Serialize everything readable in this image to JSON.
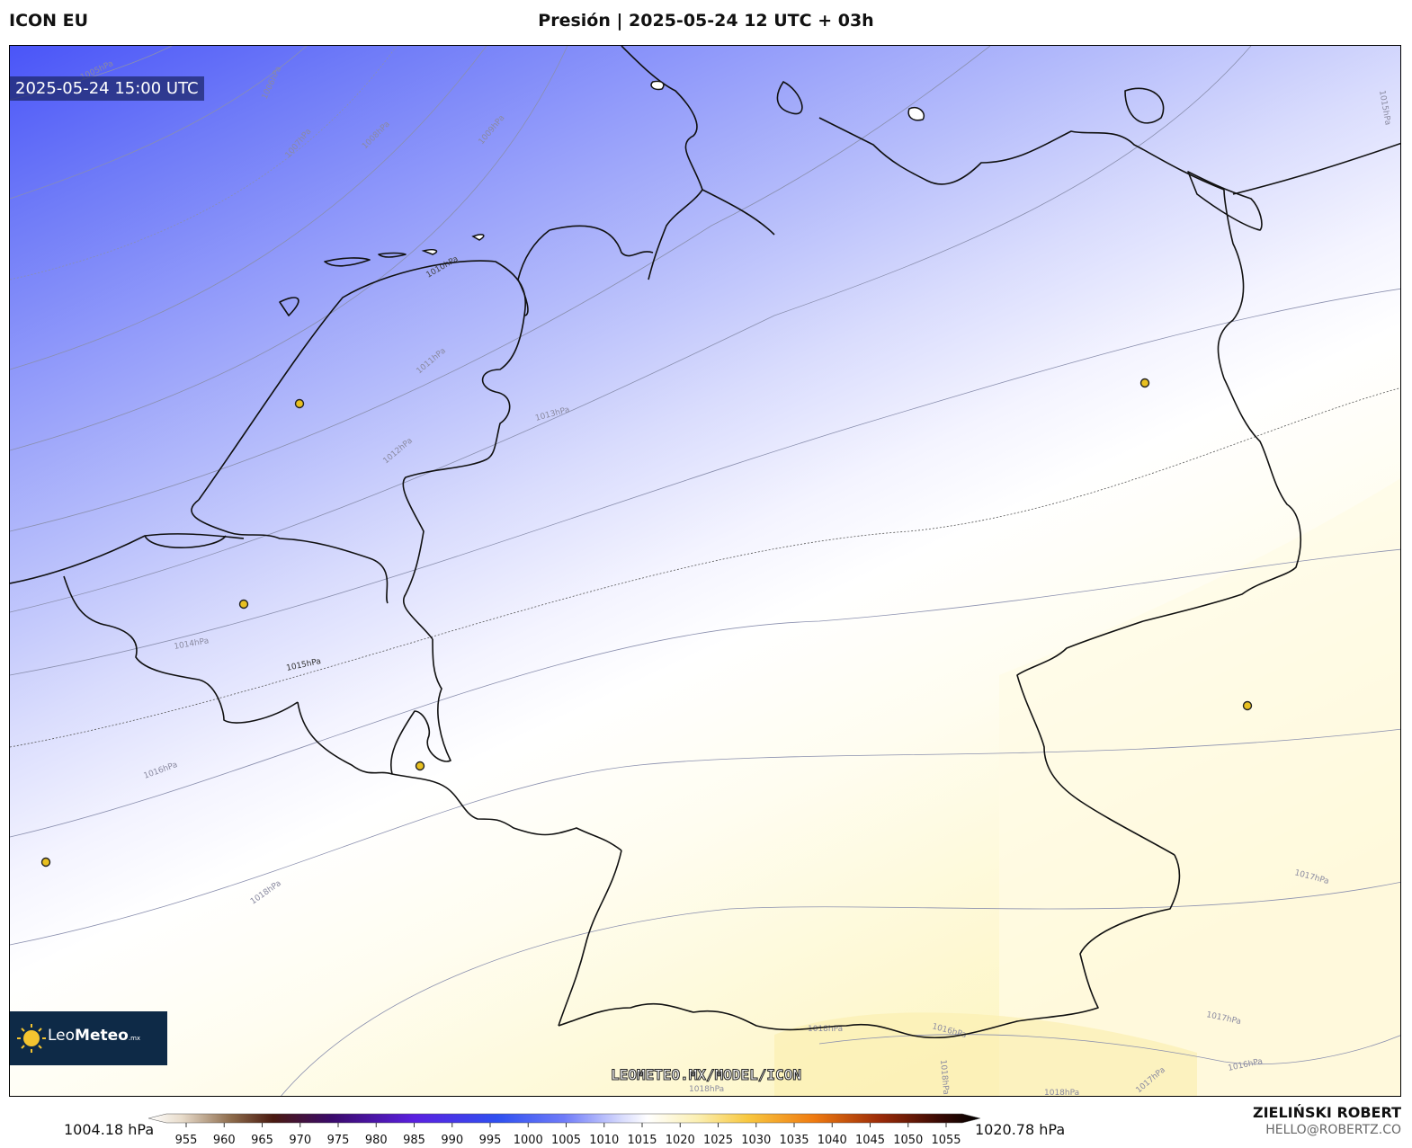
{
  "header": {
    "model": "ICON EU",
    "title": "Presión | 2025-05-24 12 UTC + 03h"
  },
  "map": {
    "valid_time": "2025-05-24 15:00 UTC",
    "watermark": "LEOMETEO.MX/MODEL/ICON",
    "isobar_labels": [
      "1005hPa",
      "1006hPa",
      "1007hPa",
      "1008hPa",
      "1009hPa",
      "1010hPa",
      "1011hPa",
      "1012hPa",
      "1013hPa",
      "1014hPa",
      "1015hPa",
      "1015hPa",
      "1016hPa",
      "1017hPa",
      "1017hPa",
      "1016hPa",
      "1016hPa",
      "1018hPa",
      "1018hPa",
      "1018hPa",
      "1018hPa",
      "1017hPa",
      "1018hPa"
    ],
    "city_marker_color": "#e8c020"
  },
  "logo": {
    "name_light": "Leo",
    "name_bold": "Meteo",
    "suffix": ".mx"
  },
  "colorbar": {
    "min_label": "1004.18 hPa",
    "max_label": "1020.78 hPa",
    "ticks": [
      "955",
      "960",
      "965",
      "970",
      "975",
      "980",
      "985",
      "990",
      "995",
      "1000",
      "1005",
      "1010",
      "1015",
      "1020",
      "1025",
      "1030",
      "1035",
      "1040",
      "1045",
      "1050",
      "1055"
    ]
  },
  "credit": {
    "name": "ZIELIŃSKI ROBERT",
    "email": "HELLO@ROBERTZ.CO"
  }
}
